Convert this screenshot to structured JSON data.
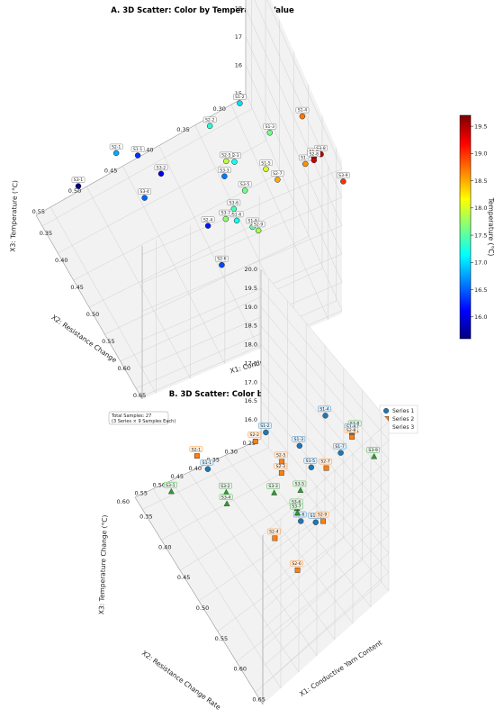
{
  "chart_data": [
    {
      "type": "scatter",
      "title": "A. 3D Scatter: Color by Temperature Value",
      "xlabel": "X1: Conductive Yarn (%)",
      "ylabel": "X2: Resistance Change",
      "zlabel": "X3: Temperature (°C)",
      "xlim": [
        0.33,
        0.67
      ],
      "ylim": [
        0.28,
        0.57
      ],
      "zlim": [
        14.9,
        20.3
      ],
      "xticks": [
        "0.35",
        "0.40",
        "0.45",
        "0.50",
        "0.55",
        "0.60",
        "0.65"
      ],
      "yticks": [
        "0.30",
        "0.35",
        "0.40",
        "0.45",
        "0.50",
        "0.55"
      ],
      "zticks": [
        "15",
        "16",
        "17",
        "18",
        "19",
        "20"
      ],
      "colorbar": {
        "label": "Temperature (°C)",
        "ticks": [
          "16.0",
          "16.5",
          "17.0",
          "17.5",
          "18.0",
          "18.5",
          "19.0",
          "19.5"
        ],
        "range": [
          15.6,
          19.7
        ],
        "colormap": "jet"
      },
      "points": [
        {
          "label": "S1-1",
          "x": 0.38,
          "y": 0.45,
          "z": 16.3
        },
        {
          "label": "S1-2",
          "x": 0.41,
          "y": 0.32,
          "z": 17.0
        },
        {
          "label": "S1-3",
          "x": 0.49,
          "y": 0.31,
          "z": 17.6
        },
        {
          "label": "S1-4",
          "x": 0.53,
          "y": 0.28,
          "z": 18.7
        },
        {
          "label": "S1-5",
          "x": 0.55,
          "y": 0.34,
          "z": 18.0
        },
        {
          "label": "S1-6",
          "x": 0.57,
          "y": 0.39,
          "z": 17.2
        },
        {
          "label": "S1-7",
          "x": 0.59,
          "y": 0.3,
          "z": 18.6
        },
        {
          "label": "S1-8",
          "x": 0.62,
          "y": 0.3,
          "z": 19.5
        },
        {
          "label": "S1-9",
          "x": 0.6,
          "y": 0.38,
          "z": 17.5
        },
        {
          "label": "S2-1",
          "x": 0.38,
          "y": 0.48,
          "z": 16.8
        },
        {
          "label": "S2-2",
          "x": 0.43,
          "y": 0.37,
          "z": 17.3
        },
        {
          "label": "S2-3",
          "x": 0.49,
          "y": 0.36,
          "z": 17.2
        },
        {
          "label": "S2-4",
          "x": 0.52,
          "y": 0.41,
          "z": 16.2
        },
        {
          "label": "S2-5",
          "x": 0.51,
          "y": 0.38,
          "z": 17.9
        },
        {
          "label": "S2-6",
          "x": 0.59,
          "y": 0.42,
          "z": 16.4
        },
        {
          "label": "S2-7",
          "x": 0.59,
          "y": 0.34,
          "z": 18.5
        },
        {
          "label": "S2-8",
          "x": 0.62,
          "y": 0.3,
          "z": 19.4
        },
        {
          "label": "S2-9",
          "x": 0.62,
          "y": 0.38,
          "z": 17.8
        },
        {
          "label": "S3-1",
          "x": 0.35,
          "y": 0.52,
          "z": 15.6
        },
        {
          "label": "S3-2",
          "x": 0.41,
          "y": 0.43,
          "z": 16.0
        },
        {
          "label": "S3-3",
          "x": 0.48,
          "y": 0.37,
          "z": 16.6
        },
        {
          "label": "S3-4",
          "x": 0.45,
          "y": 0.47,
          "z": 16.5
        },
        {
          "label": "S3-5",
          "x": 0.55,
          "y": 0.37,
          "z": 17.6
        },
        {
          "label": "S3-6",
          "x": 0.56,
          "y": 0.39,
          "z": 17.4
        },
        {
          "label": "S3-7",
          "x": 0.58,
          "y": 0.41,
          "z": 17.7
        },
        {
          "label": "S3-8",
          "x": 0.62,
          "y": 0.29,
          "z": 19.5
        },
        {
          "label": "S3-9",
          "x": 0.65,
          "y": 0.27,
          "z": 19.0
        }
      ]
    },
    {
      "type": "scatter",
      "title": "B. 3D Scatter: Color by Series Group",
      "xlabel": "X1: Conductive Yarn Content",
      "ylabel": "X2: Resistance Change Rate",
      "zlabel": "X3: Temperature Change (°C)",
      "xlim": [
        0.33,
        0.67
      ],
      "ylim": [
        0.25,
        0.6
      ],
      "zlim": [
        15.5,
        20.0
      ],
      "xticks": [
        "0.35",
        "0.40",
        "0.45",
        "0.50",
        "0.55",
        "0.60",
        "0.65"
      ],
      "yticks": [
        "0.25",
        "0.30",
        "0.35",
        "0.40",
        "0.45",
        "0.50",
        "0.55",
        "0.60"
      ],
      "zticks": [
        "16.0",
        "16.5",
        "17.0",
        "17.5",
        "18.0",
        "18.5",
        "19.0",
        "19.5",
        "20.0"
      ],
      "annotation": "Total Samples: 27\n(3 Series × 9 Samples Each)",
      "legend": {
        "position": "top-right"
      },
      "series": [
        {
          "name": "Series 1",
          "color": "#1f77b4",
          "marker": "circle",
          "points": [
            {
              "label": "S1-1",
              "x": 0.38,
              "y": 0.45,
              "z": 16.3
            },
            {
              "label": "S1-2",
              "x": 0.41,
              "y": 0.32,
              "z": 17.0
            },
            {
              "label": "S1-3",
              "x": 0.49,
              "y": 0.31,
              "z": 17.6
            },
            {
              "label": "S1-4",
              "x": 0.53,
              "y": 0.28,
              "z": 18.7
            },
            {
              "label": "S1-5",
              "x": 0.55,
              "y": 0.34,
              "z": 18.0
            },
            {
              "label": "S1-6",
              "x": 0.57,
              "y": 0.39,
              "z": 17.2
            },
            {
              "label": "S1-7",
              "x": 0.59,
              "y": 0.3,
              "z": 18.6
            },
            {
              "label": "S1-8",
              "x": 0.62,
              "y": 0.3,
              "z": 19.5
            },
            {
              "label": "S1-9",
              "x": 0.6,
              "y": 0.38,
              "z": 17.5
            }
          ]
        },
        {
          "name": "Series 2",
          "color": "#ff7f0e",
          "marker": "square",
          "points": [
            {
              "label": "S2-1",
              "x": 0.38,
              "y": 0.48,
              "z": 16.8
            },
            {
              "label": "S2-2",
              "x": 0.43,
              "y": 0.37,
              "z": 17.3
            },
            {
              "label": "S2-3",
              "x": 0.49,
              "y": 0.36,
              "z": 17.2
            },
            {
              "label": "S2-4",
              "x": 0.52,
              "y": 0.41,
              "z": 16.2
            },
            {
              "label": "S2-5",
              "x": 0.51,
              "y": 0.38,
              "z": 17.9
            },
            {
              "label": "S2-6",
              "x": 0.59,
              "y": 0.42,
              "z": 16.4
            },
            {
              "label": "S2-7",
              "x": 0.59,
              "y": 0.34,
              "z": 18.5
            },
            {
              "label": "S2-8",
              "x": 0.62,
              "y": 0.3,
              "z": 19.4
            },
            {
              "label": "S2-9",
              "x": 0.62,
              "y": 0.38,
              "z": 17.8
            }
          ]
        },
        {
          "name": "Series 3",
          "color": "#2ca02c",
          "marker": "triangle",
          "points": [
            {
              "label": "S3-1",
              "x": 0.35,
              "y": 0.52,
              "z": 15.6
            },
            {
              "label": "S3-2",
              "x": 0.41,
              "y": 0.43,
              "z": 16.0
            },
            {
              "label": "S3-3",
              "x": 0.48,
              "y": 0.37,
              "z": 16.6
            },
            {
              "label": "S3-4",
              "x": 0.45,
              "y": 0.47,
              "z": 16.5
            },
            {
              "label": "S3-5",
              "x": 0.55,
              "y": 0.37,
              "z": 17.6
            },
            {
              "label": "S3-6",
              "x": 0.56,
              "y": 0.39,
              "z": 17.4
            },
            {
              "label": "S3-7",
              "x": 0.58,
              "y": 0.41,
              "z": 17.7
            },
            {
              "label": "S3-8",
              "x": 0.62,
              "y": 0.29,
              "z": 19.5
            },
            {
              "label": "S3-9",
              "x": 0.65,
              "y": 0.27,
              "z": 19.0
            }
          ]
        }
      ]
    }
  ]
}
